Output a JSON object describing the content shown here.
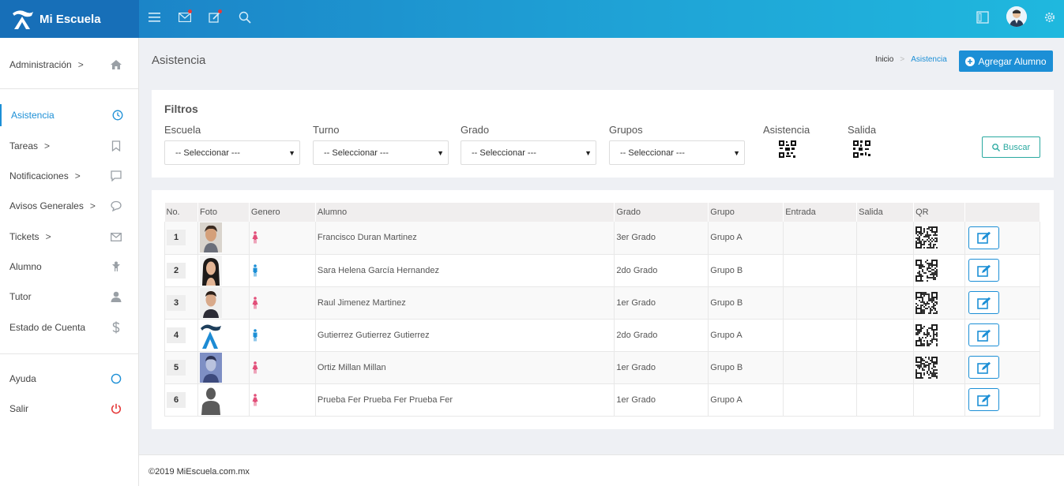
{
  "app": {
    "name": "Mi Escuela",
    "colors": {
      "primary": "#1c8fd6",
      "topbar": "#1fa3d6",
      "brand_bg": "#176fb8",
      "danger": "#e53a3a",
      "teal": "#2aa9a0"
    }
  },
  "topbar": {
    "icons": [
      "menu-icon",
      "mail-icon",
      "edit-icon",
      "search-icon",
      "sidebar-toggle-icon",
      "avatar",
      "gear-icon"
    ]
  },
  "sidebar": {
    "items": [
      {
        "label": "Administración",
        "icon": "home-icon",
        "arrow": true
      },
      {
        "label": "Asistencia",
        "icon": "clock-icon",
        "active": true
      },
      {
        "label": "Tareas",
        "icon": "bookmark-icon",
        "arrow": true
      },
      {
        "label": "Notificaciones",
        "icon": "message-square-icon",
        "arrow": true
      },
      {
        "label": "Avisos Generales",
        "icon": "chat-bubble-icon",
        "arrow": true
      },
      {
        "label": "Tickets",
        "icon": "envelope-icon",
        "arrow": true
      },
      {
        "label": "Alumno",
        "icon": "student-icon"
      },
      {
        "label": "Tutor",
        "icon": "user-icon"
      },
      {
        "label": "Estado de Cuenta",
        "icon": "dollar-icon"
      },
      {
        "label": "Ayuda",
        "icon": "circle-icon"
      },
      {
        "label": "Salir",
        "icon": "power-icon"
      }
    ],
    "arrow_glyph": ">"
  },
  "header": {
    "title": "Asistencia",
    "breadcrumb": {
      "home": "Inicio",
      "sep": ">",
      "current": "Asistencia"
    },
    "add_button": "Agregar Alumno"
  },
  "filters": {
    "title": "Filtros",
    "escuela": {
      "label": "Escuela",
      "value": "-- Seleccionar ---"
    },
    "turno": {
      "label": "Turno",
      "value": "-- Seleccionar ---"
    },
    "grado": {
      "label": "Grado",
      "value": "-- Seleccionar ---"
    },
    "grupos": {
      "label": "Grupos",
      "value": "-- Seleccionar ---"
    },
    "asistencia_label": "Asistencia",
    "salida_label": "Salida",
    "search_button": "Buscar"
  },
  "table": {
    "headers": [
      "No.",
      "Foto",
      "Genero",
      "Alumno",
      "Grado",
      "Grupo",
      "Entrada",
      "Salida",
      "QR",
      ""
    ],
    "rows": [
      {
        "no": "1",
        "photo": "male",
        "gender": "female",
        "alumno": "Francisco Duran Martinez",
        "grado": "3er Grado",
        "grupo": "Grupo A",
        "entrada": "",
        "salida": "",
        "qr": true
      },
      {
        "no": "2",
        "photo": "female",
        "gender": "male",
        "alumno": "Sara Helena García Hernandez",
        "grado": "2do Grado",
        "grupo": "Grupo B",
        "entrada": "",
        "salida": "",
        "qr": true
      },
      {
        "no": "3",
        "photo": "male2",
        "gender": "female",
        "alumno": "Raul Jimenez Martinez",
        "grado": "1er Grado",
        "grupo": "Grupo B",
        "entrada": "",
        "salida": "",
        "qr": true
      },
      {
        "no": "4",
        "photo": "logo",
        "gender": "male",
        "alumno": "Gutierrez Gutierrez Gutierrez",
        "grado": "2do Grado",
        "grupo": "Grupo A",
        "entrada": "",
        "salida": "",
        "qr": true
      },
      {
        "no": "5",
        "photo": "male3",
        "gender": "female",
        "alumno": "Ortiz Millan Millan",
        "grado": "1er Grado",
        "grupo": "Grupo B",
        "entrada": "",
        "salida": "",
        "qr": true
      },
      {
        "no": "6",
        "photo": "silhouette",
        "gender": "female",
        "alumno": "Prueba Fer Prueba Fer Prueba Fer",
        "grado": "1er Grado",
        "grupo": "Grupo A",
        "entrada": "",
        "salida": "",
        "qr": false
      }
    ]
  },
  "footer": {
    "text": "©2019 MiEscuela.com.mx"
  }
}
